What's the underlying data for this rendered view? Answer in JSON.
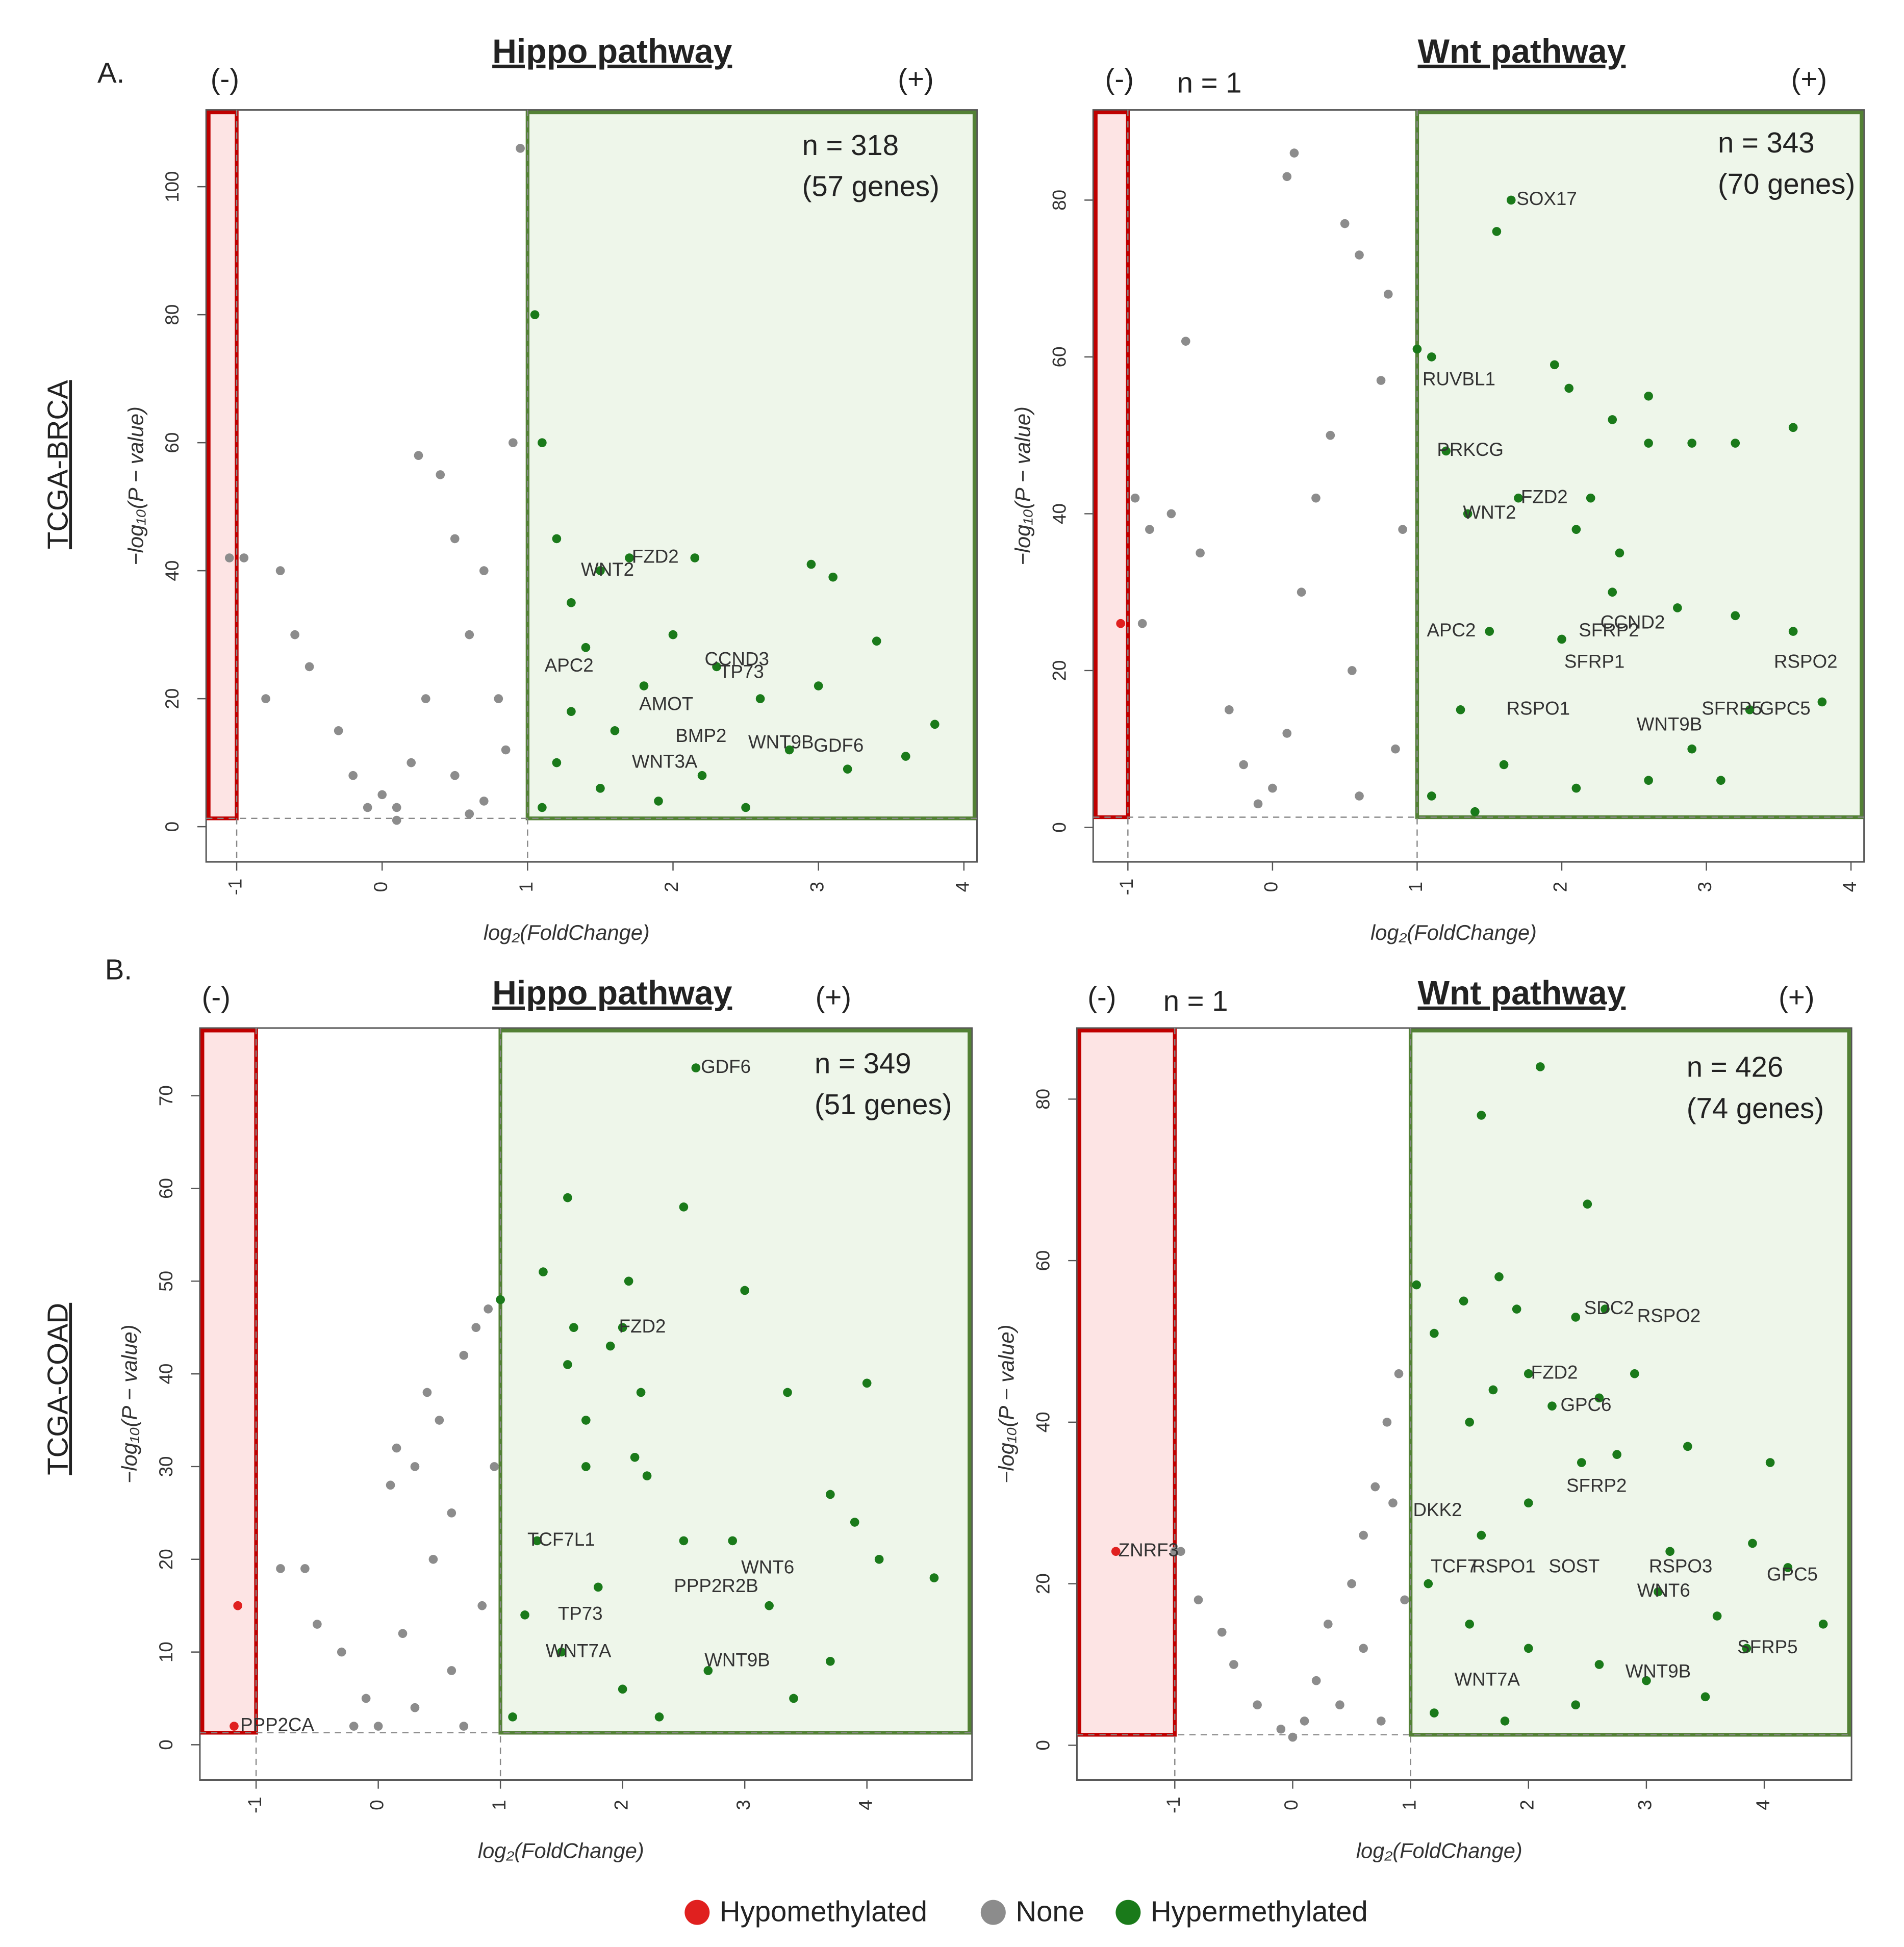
{
  "figure": {
    "panel_labels": [
      "A.",
      "B."
    ],
    "row_labels": [
      "TCGA-BRCA",
      "TCGA-COAD"
    ]
  },
  "chart_data": [
    {
      "type": "scatter",
      "title": "Hippo pathway",
      "xlabel": "log₂(FoldChange)",
      "ylabel": "−log₁₀(P − value)",
      "xlim": [
        -1.21,
        4.09
      ],
      "ylim": [
        -5.5,
        112
      ],
      "xticks": [
        -1,
        0,
        1,
        2,
        3,
        4
      ],
      "yticks": [
        0,
        20,
        40,
        60,
        80,
        100
      ],
      "x_thresholds": [
        -1,
        1
      ],
      "y_threshold": 1.3,
      "left_sign": "(-)",
      "right_sign": "(+)",
      "hyper_count": "n = 318",
      "hyper_genes": "(57 genes)",
      "series": [
        {
          "name": "Hypomethylated",
          "color": "#e0201f",
          "x": [],
          "values": []
        },
        {
          "name": "None",
          "color": "#8c8c8c",
          "x": [
            -1.05,
            -0.95,
            -0.7,
            -0.6,
            -0.8,
            -0.5,
            -0.3,
            -0.2,
            0,
            0.1,
            0.2,
            0.25,
            0.4,
            0.5,
            0.6,
            0.7,
            0.8,
            0.9,
            0.95,
            0.3,
            0.5,
            0.7,
            -0.1,
            0.85,
            0.6,
            0.1
          ],
          "values": [
            42,
            42,
            40,
            30,
            20,
            25,
            15,
            8,
            5,
            3,
            10,
            58,
            55,
            45,
            30,
            40,
            20,
            60,
            106,
            20,
            8,
            4,
            3,
            12,
            2,
            1
          ]
        },
        {
          "name": "Hypermethylated",
          "color": "#1a7a1a",
          "x": [
            1.05,
            1.1,
            1.2,
            1.3,
            1.5,
            1.7,
            2.15,
            2.95,
            3.1,
            1.4,
            1.8,
            2.0,
            2.3,
            2.6,
            3.0,
            3.4,
            3.8,
            3.6,
            1.2,
            1.5,
            1.9,
            2.2,
            2.8,
            3.2,
            1.1,
            1.6,
            2.5,
            1.3
          ],
          "values": [
            80,
            60,
            45,
            35,
            40,
            42,
            42,
            41,
            39,
            28,
            22,
            30,
            25,
            20,
            22,
            29,
            16,
            11,
            10,
            6,
            4,
            8,
            12,
            9,
            3,
            15,
            3,
            18
          ]
        }
      ],
      "annotations": [
        {
          "text": "WNT2",
          "x": 1.35,
          "y": 40
        },
        {
          "text": "FZD2",
          "x": 1.7,
          "y": 42
        },
        {
          "text": "APC2",
          "x": 1.1,
          "y": 25
        },
        {
          "text": "CCND3",
          "x": 2.2,
          "y": 26
        },
        {
          "text": "TP73",
          "x": 2.3,
          "y": 24
        },
        {
          "text": "AMOT",
          "x": 1.75,
          "y": 19
        },
        {
          "text": "BMP2",
          "x": 2.0,
          "y": 14
        },
        {
          "text": "WNT3A",
          "x": 1.7,
          "y": 10
        },
        {
          "text": "WNT9B",
          "x": 2.5,
          "y": 13
        },
        {
          "text": "GDF6",
          "x": 2.95,
          "y": 12.5
        }
      ]
    },
    {
      "type": "scatter",
      "title": "Wnt pathway",
      "xlabel": "log₂(FoldChange)",
      "ylabel": "−log₁₀(P − value)",
      "xlim": [
        -1.24,
        4.09
      ],
      "ylim": [
        -4.4,
        91.5
      ],
      "xticks": [
        -1,
        0,
        1,
        2,
        3,
        4
      ],
      "yticks": [
        0,
        20,
        40,
        60,
        80
      ],
      "x_thresholds": [
        -1,
        1
      ],
      "y_threshold": 1.3,
      "left_sign": "(-)",
      "right_sign": "(+)",
      "hypo_count": "n = 1",
      "hyper_count": "n = 343",
      "hyper_genes": "(70 genes)",
      "series": [
        {
          "name": "Hypomethylated",
          "color": "#e0201f",
          "x": [
            -1.05
          ],
          "values": [
            26
          ]
        },
        {
          "name": "None",
          "color": "#8c8c8c",
          "x": [
            -0.95,
            -0.85,
            -0.7,
            -0.6,
            -0.5,
            -0.9,
            -0.3,
            -0.2,
            0,
            0.1,
            0.15,
            0.5,
            0.6,
            0.8,
            0.75,
            0.4,
            0.3,
            0.2,
            0.55,
            0.9,
            0.1,
            -0.1,
            0.6,
            0.85
          ],
          "values": [
            42,
            38,
            40,
            62,
            35,
            26,
            15,
            8,
            5,
            83,
            86,
            77,
            73,
            68,
            57,
            50,
            42,
            30,
            20,
            38,
            12,
            3,
            4,
            10
          ]
        },
        {
          "name": "Hypermethylated",
          "color": "#1a7a1a",
          "x": [
            1.65,
            1.55,
            1.0,
            1.1,
            1.2,
            1.7,
            1.35,
            1.95,
            2.05,
            2.35,
            2.6,
            2.6,
            2.9,
            3.2,
            3.6,
            2.2,
            2.1,
            2.4,
            1.5,
            2.0,
            2.35,
            2.8,
            3.2,
            3.6,
            3.8,
            3.3,
            2.9,
            1.3,
            1.6,
            2.1,
            1.1,
            2.6,
            3.1,
            1.4
          ],
          "values": [
            80,
            76,
            61,
            60,
            48,
            42,
            40,
            59,
            56,
            52,
            55,
            49,
            49,
            49,
            51,
            42,
            38,
            35,
            25,
            24,
            30,
            28,
            27,
            25,
            16,
            15,
            10,
            15,
            8,
            5,
            4,
            6,
            6,
            2
          ]
        }
      ],
      "annotations": [
        {
          "text": "SOX17",
          "x": 1.67,
          "y": 80
        },
        {
          "text": "RUVBL1",
          "x": 1.02,
          "y": 57
        },
        {
          "text": "PRKCG",
          "x": 1.12,
          "y": 48
        },
        {
          "text": "FZD2",
          "x": 1.7,
          "y": 42
        },
        {
          "text": "WNT2",
          "x": 1.3,
          "y": 40
        },
        {
          "text": "APC2",
          "x": 1.05,
          "y": 25
        },
        {
          "text": "CCND2",
          "x": 2.25,
          "y": 26
        },
        {
          "text": "SFRP2",
          "x": 2.1,
          "y": 25
        },
        {
          "text": "SFRP1",
          "x": 2.0,
          "y": 21
        },
        {
          "text": "RSPO1",
          "x": 1.6,
          "y": 15
        },
        {
          "text": "RSPO2",
          "x": 3.45,
          "y": 21
        },
        {
          "text": "SFRP5",
          "x": 2.95,
          "y": 15
        },
        {
          "text": "GPC5",
          "x": 3.35,
          "y": 15
        },
        {
          "text": "WNT9B",
          "x": 2.5,
          "y": 13
        }
      ]
    },
    {
      "type": "scatter",
      "title": "Hippo pathway",
      "xlabel": "log₂(FoldChange)",
      "ylabel": "−log₁₀(P − value)",
      "xlim": [
        -1.46,
        4.86
      ],
      "ylim": [
        -3.8,
        77.3
      ],
      "xticks": [
        -1,
        0,
        1,
        2,
        3,
        4
      ],
      "yticks": [
        0,
        10,
        20,
        30,
        40,
        50,
        60,
        70
      ],
      "x_thresholds": [
        -1,
        1
      ],
      "y_threshold": 1.3,
      "left_sign": "(-)",
      "right_sign": "(+)",
      "hyper_count": "n = 349",
      "hyper_genes": "(51 genes)",
      "series": [
        {
          "name": "Hypomethylated",
          "color": "#e0201f",
          "x": [
            -1.15,
            -1.18
          ],
          "values": [
            15,
            2
          ]
        },
        {
          "name": "None",
          "color": "#8c8c8c",
          "x": [
            -0.8,
            -0.6,
            -0.5,
            -0.3,
            -0.1,
            0,
            0.1,
            0.15,
            0.3,
            0.4,
            0.5,
            0.6,
            0.7,
            0.8,
            0.9,
            0.45,
            0.2,
            0.6,
            0.85,
            0.3,
            0.7,
            -0.2,
            0.95
          ],
          "values": [
            19,
            19,
            13,
            10,
            5,
            2,
            28,
            32,
            30,
            38,
            35,
            25,
            42,
            45,
            47,
            20,
            12,
            8,
            15,
            4,
            2,
            2,
            30
          ]
        },
        {
          "name": "Hypermethylated",
          "color": "#1a7a1a",
          "x": [
            2.6,
            1.55,
            2.5,
            1.35,
            2.05,
            3.0,
            1.0,
            1.6,
            2.0,
            1.55,
            1.9,
            2.15,
            4.0,
            3.35,
            1.7,
            1.7,
            2.1,
            2.2,
            1.3,
            2.5,
            2.9,
            3.7,
            3.9,
            4.1,
            4.55,
            3.2,
            1.2,
            1.5,
            2.0,
            2.7,
            3.4,
            1.1,
            2.3,
            3.7,
            1.8
          ],
          "values": [
            73,
            59,
            58,
            51,
            50,
            49,
            48,
            45,
            45,
            41,
            43,
            38,
            39,
            38,
            35,
            30,
            31,
            29,
            22,
            22,
            22,
            27,
            24,
            20,
            18,
            15,
            14,
            10,
            6,
            8,
            5,
            3,
            3,
            9,
            17
          ]
        }
      ],
      "annotations": [
        {
          "text": "GDF6",
          "x": 2.62,
          "y": 73
        },
        {
          "text": "FZD2",
          "x": 1.95,
          "y": 45
        },
        {
          "text": "TCF7L1",
          "x": 1.2,
          "y": 22
        },
        {
          "text": "WNT6",
          "x": 2.95,
          "y": 19
        },
        {
          "text": "PPP2R2B",
          "x": 2.4,
          "y": 17
        },
        {
          "text": "TP73",
          "x": 1.45,
          "y": 14
        },
        {
          "text": "WNT7A",
          "x": 1.35,
          "y": 10
        },
        {
          "text": "WNT9B",
          "x": 2.65,
          "y": 9
        },
        {
          "text": "PPP2CA",
          "x": -1.15,
          "y": 2
        }
      ]
    },
    {
      "type": "scatter",
      "title": "Wnt pathway",
      "xlabel": "log₂(FoldChange)",
      "ylabel": "−log₁₀(P − value)",
      "xlim": [
        -1.83,
        4.74
      ],
      "ylim": [
        -4.3,
        88.8
      ],
      "xticks": [
        -1,
        0,
        1,
        2,
        3,
        4
      ],
      "yticks": [
        0,
        20,
        40,
        60,
        80
      ],
      "x_thresholds": [
        -1,
        1
      ],
      "y_threshold": 1.3,
      "left_sign": "(-)",
      "right_sign": "(+)",
      "hypo_count": "n = 1",
      "hyper_count": "n = 426",
      "hyper_genes": "(74 genes)",
      "series": [
        {
          "name": "Hypomethylated",
          "color": "#e0201f",
          "x": [
            -1.5
          ],
          "values": [
            24
          ]
        },
        {
          "name": "None",
          "color": "#8c8c8c",
          "x": [
            -1.0,
            -0.95,
            -0.8,
            -0.6,
            -0.5,
            -0.3,
            -0.1,
            0,
            0.2,
            0.3,
            0.5,
            0.6,
            0.7,
            0.8,
            0.9,
            0.85,
            0.6,
            0.4,
            0.75,
            0.95,
            0.1
          ],
          "values": [
            24,
            24,
            18,
            14,
            10,
            5,
            2,
            1,
            8,
            15,
            20,
            26,
            32,
            40,
            46,
            30,
            12,
            5,
            3,
            18,
            3
          ]
        },
        {
          "name": "Hypermethylated",
          "color": "#1a7a1a",
          "x": [
            2.1,
            1.6,
            2.5,
            1.05,
            1.75,
            1.45,
            1.9,
            2.4,
            2.65,
            1.2,
            2.0,
            1.7,
            2.2,
            2.9,
            2.6,
            1.5,
            2.45,
            2.75,
            3.35,
            4.05,
            2.0,
            1.6,
            3.2,
            3.9,
            4.2,
            4.5,
            3.85,
            3.6,
            3.1,
            1.15,
            1.5,
            2.0,
            2.6,
            3.0,
            1.2,
            1.8,
            2.4,
            3.5
          ],
          "values": [
            84,
            78,
            67,
            57,
            58,
            55,
            54,
            53,
            54,
            51,
            46,
            44,
            42,
            46,
            43,
            40,
            35,
            36,
            37,
            35,
            30,
            26,
            24,
            25,
            22,
            15,
            12,
            16,
            19,
            20,
            15,
            12,
            10,
            8,
            4,
            3,
            5,
            6
          ]
        }
      ],
      "annotations": [
        {
          "text": "SDC2",
          "x": 2.45,
          "y": 54
        },
        {
          "text": "RSPO2",
          "x": 2.9,
          "y": 53
        },
        {
          "text": "FZD2",
          "x": 2.0,
          "y": 46
        },
        {
          "text": "GPC6",
          "x": 2.25,
          "y": 42
        },
        {
          "text": "SFRP2",
          "x": 2.3,
          "y": 32
        },
        {
          "text": "DKK2",
          "x": 1.0,
          "y": 29
        },
        {
          "text": "ZNRF3",
          "x": -1.5,
          "y": 24
        },
        {
          "text": "TCF7",
          "x": 1.15,
          "y": 22
        },
        {
          "text": "RSPO1",
          "x": 1.5,
          "y": 22
        },
        {
          "text": "SOST",
          "x": 2.15,
          "y": 22
        },
        {
          "text": "RSPO3",
          "x": 3.0,
          "y": 22
        },
        {
          "text": "WNT6",
          "x": 2.9,
          "y": 19
        },
        {
          "text": "GPC5",
          "x": 4.0,
          "y": 21
        },
        {
          "text": "SFRP5",
          "x": 3.75,
          "y": 12
        },
        {
          "text": "WNT7A",
          "x": 1.35,
          "y": 8
        },
        {
          "text": "WNT9B",
          "x": 2.8,
          "y": 9
        }
      ]
    }
  ]
}
